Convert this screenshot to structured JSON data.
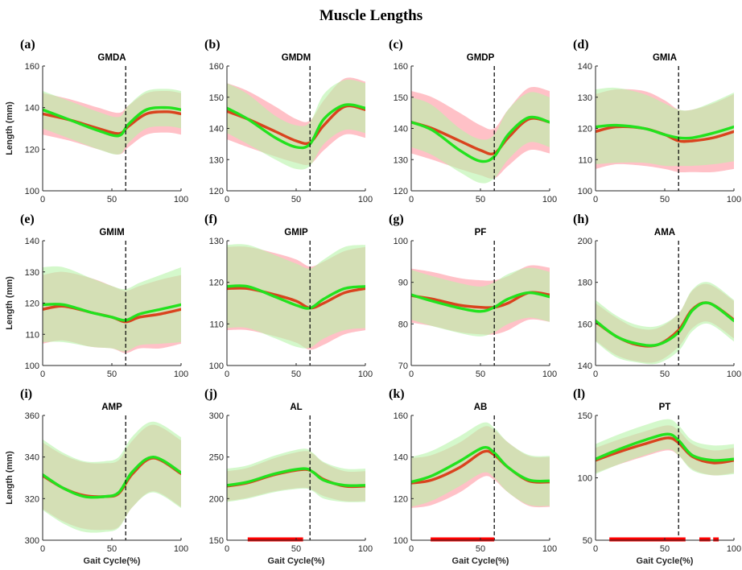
{
  "figure": {
    "title": "Muscle Lengths"
  },
  "colors": {
    "mean_a": "#d9431e",
    "mean_b": "#22e21e",
    "band_a": "#ffb6bd",
    "band_b": "#b8f3a8",
    "overlap": "#d2d6b0",
    "significance": "#ff0000"
  },
  "chart_data": [
    {
      "tag": "(a)",
      "title": "GMDA",
      "type": "line",
      "xlim": [
        0,
        100
      ],
      "ylim": [
        100,
        160
      ],
      "yticks": [
        100,
        120,
        140,
        160
      ],
      "xticks": [
        0,
        50,
        100
      ],
      "ylabel": "Length (mm)",
      "xlabel": "",
      "vline_x": 60,
      "series": [
        {
          "x": [
            0,
            20,
            40,
            55,
            62,
            75,
            90,
            100
          ],
          "y": [
            137,
            134,
            130,
            127.5,
            131,
            137,
            138,
            137
          ],
          "band": [
            10,
            10,
            10,
            10,
            10,
            10,
            10,
            10
          ]
        },
        {
          "x": [
            0,
            20,
            40,
            55,
            62,
            75,
            90,
            100
          ],
          "y": [
            139,
            134,
            129,
            126.5,
            132,
            139,
            140,
            139
          ],
          "band": [
            9,
            9,
            9,
            9,
            9,
            9,
            9,
            9
          ]
        }
      ],
      "significance": []
    },
    {
      "tag": "(b)",
      "title": "GMDM",
      "type": "line",
      "xlim": [
        0,
        100
      ],
      "ylim": [
        120,
        160
      ],
      "yticks": [
        120,
        130,
        140,
        150,
        160
      ],
      "xticks": [
        0,
        50,
        100
      ],
      "ylabel": "",
      "xlabel": "",
      "vline_x": 60,
      "series": [
        {
          "x": [
            0,
            15,
            35,
            50,
            60,
            70,
            85,
            100
          ],
          "y": [
            145.5,
            143,
            139,
            136,
            135.5,
            141,
            147,
            146
          ],
          "band": [
            9,
            9,
            8,
            7,
            7,
            8,
            9,
            9
          ]
        },
        {
          "x": [
            0,
            15,
            35,
            50,
            60,
            70,
            85,
            100
          ],
          "y": [
            146.5,
            143,
            137,
            134,
            135,
            143,
            147.5,
            146.5
          ],
          "band": [
            8,
            8,
            7,
            7,
            7,
            8,
            8,
            8
          ]
        }
      ],
      "significance": []
    },
    {
      "tag": "(c)",
      "title": "GMDP",
      "type": "line",
      "xlim": [
        0,
        100
      ],
      "ylim": [
        120,
        160
      ],
      "yticks": [
        120,
        130,
        140,
        150,
        160
      ],
      "xticks": [
        0,
        50,
        100
      ],
      "ylabel": "",
      "xlabel": "",
      "vline_x": 60,
      "series": [
        {
          "x": [
            0,
            15,
            35,
            50,
            60,
            70,
            85,
            100
          ],
          "y": [
            142,
            140,
            136,
            133,
            132,
            137,
            143,
            142
          ],
          "band": [
            10,
            10,
            9,
            8,
            8,
            9,
            10,
            10
          ]
        },
        {
          "x": [
            0,
            15,
            35,
            50,
            60,
            70,
            85,
            100
          ],
          "y": [
            142,
            139.5,
            133,
            129.5,
            131,
            138,
            143.5,
            142
          ],
          "band": [
            8,
            8,
            7,
            7,
            7,
            8,
            8,
            8
          ]
        }
      ],
      "significance": []
    },
    {
      "tag": "(d)",
      "title": "GMIA",
      "type": "line",
      "xlim": [
        0,
        100
      ],
      "ylim": [
        100,
        140
      ],
      "yticks": [
        100,
        110,
        120,
        130,
        140
      ],
      "xticks": [
        0,
        50,
        100
      ],
      "ylabel": "",
      "xlabel": "",
      "vline_x": 60,
      "series": [
        {
          "x": [
            0,
            15,
            35,
            50,
            60,
            70,
            85,
            100
          ],
          "y": [
            119,
            120.5,
            120,
            118,
            116,
            116,
            117,
            119
          ],
          "band": [
            12,
            12,
            12,
            11,
            10,
            10,
            11,
            12
          ]
        },
        {
          "x": [
            0,
            15,
            35,
            50,
            60,
            70,
            85,
            100
          ],
          "y": [
            120.5,
            121,
            120,
            118,
            117,
            117,
            118.5,
            120.5
          ],
          "band": [
            12,
            12,
            11,
            10,
            9,
            9,
            10,
            11
          ]
        }
      ],
      "significance": []
    },
    {
      "tag": "(e)",
      "title": "GMIM",
      "type": "line",
      "xlim": [
        0,
        100
      ],
      "ylim": [
        100,
        140
      ],
      "yticks": [
        100,
        110,
        120,
        130,
        140
      ],
      "xticks": [
        0,
        50,
        100
      ],
      "ylabel": "Length (mm)",
      "xlabel": "",
      "vline_x": 60,
      "series": [
        {
          "x": [
            0,
            15,
            35,
            50,
            60,
            70,
            85,
            100
          ],
          "y": [
            118,
            119,
            117,
            115.5,
            114,
            115.5,
            116.5,
            118
          ],
          "band": [
            11,
            11,
            11,
            10,
            10,
            10,
            11,
            11
          ]
        },
        {
          "x": [
            0,
            15,
            35,
            50,
            60,
            70,
            85,
            100
          ],
          "y": [
            119.5,
            119.5,
            117,
            115.5,
            114.5,
            116.5,
            118,
            119.5
          ],
          "band": [
            12,
            12,
            11,
            10,
            10,
            10,
            11,
            12
          ]
        }
      ],
      "significance": []
    },
    {
      "tag": "(f)",
      "title": "GMIP",
      "type": "line",
      "xlim": [
        0,
        100
      ],
      "ylim": [
        100,
        130
      ],
      "yticks": [
        100,
        110,
        120,
        130
      ],
      "xticks": [
        0,
        50,
        100
      ],
      "ylabel": "",
      "xlabel": "",
      "vline_x": 60,
      "series": [
        {
          "x": [
            0,
            15,
            35,
            50,
            60,
            70,
            85,
            100
          ],
          "y": [
            118.5,
            118.5,
            117,
            115.5,
            113.8,
            115,
            117.5,
            118.5
          ],
          "band": [
            10,
            10,
            10,
            10,
            10,
            10,
            10,
            10
          ]
        },
        {
          "x": [
            0,
            15,
            35,
            50,
            60,
            70,
            85,
            100
          ],
          "y": [
            119,
            119,
            116.5,
            114.5,
            113.8,
            116,
            118.5,
            119
          ],
          "band": [
            10,
            10,
            10,
            10,
            9.5,
            9.5,
            10,
            10
          ]
        }
      ],
      "significance": []
    },
    {
      "tag": "(g)",
      "title": "PF",
      "type": "line",
      "xlim": [
        0,
        100
      ],
      "ylim": [
        70,
        100
      ],
      "yticks": [
        70,
        80,
        90,
        100
      ],
      "xticks": [
        0,
        50,
        100
      ],
      "ylabel": "",
      "xlabel": "",
      "vline_x": 60,
      "series": [
        {
          "x": [
            0,
            15,
            35,
            50,
            60,
            70,
            85,
            100
          ],
          "y": [
            86.8,
            86,
            84.5,
            84,
            84,
            85,
            87.5,
            87
          ],
          "band": [
            6.5,
            6.5,
            6.5,
            6.5,
            6.5,
            6.5,
            6.5,
            6.5
          ]
        },
        {
          "x": [
            0,
            15,
            35,
            50,
            60,
            70,
            85,
            100
          ],
          "y": [
            87,
            85.5,
            83.8,
            83,
            84,
            86,
            87.5,
            86.5
          ],
          "band": [
            6,
            6,
            6,
            6,
            6,
            6,
            6,
            6
          ]
        }
      ],
      "significance": []
    },
    {
      "tag": "(h)",
      "title": "AMA",
      "type": "line",
      "xlim": [
        0,
        100
      ],
      "ylim": [
        140,
        200
      ],
      "yticks": [
        140,
        160,
        180,
        200
      ],
      "xticks": [
        0,
        50,
        100
      ],
      "ylabel": "",
      "xlabel": "",
      "vline_x": 60,
      "series": [
        {
          "x": [
            0,
            15,
            30,
            45,
            60,
            70,
            82,
            100
          ],
          "y": [
            161,
            154,
            150,
            150,
            157,
            167,
            170,
            162
          ],
          "band": [
            9,
            9,
            8,
            8,
            8,
            9,
            9,
            9
          ]
        },
        {
          "x": [
            0,
            15,
            30,
            45,
            60,
            70,
            82,
            100
          ],
          "y": [
            161.5,
            154,
            150.5,
            150,
            156,
            166.5,
            170,
            161.5
          ],
          "band": [
            10,
            10,
            9,
            9,
            9,
            10,
            10,
            10
          ]
        }
      ],
      "significance": []
    },
    {
      "tag": "(i)",
      "title": "AMP",
      "type": "line",
      "xlim": [
        0,
        100
      ],
      "ylim": [
        300,
        360
      ],
      "yticks": [
        300,
        320,
        340,
        360
      ],
      "xticks": [
        0,
        50,
        100
      ],
      "ylabel": "Length (mm)",
      "xlabel": "Gait Cycle(%)",
      "vline_x": 60,
      "series": [
        {
          "x": [
            0,
            15,
            30,
            45,
            55,
            65,
            80,
            100
          ],
          "y": [
            331,
            325,
            321.5,
            321,
            322.5,
            332,
            339.5,
            332
          ],
          "band": [
            16,
            16,
            16,
            16,
            16,
            16,
            16,
            16
          ]
        },
        {
          "x": [
            0,
            15,
            30,
            45,
            55,
            65,
            80,
            100
          ],
          "y": [
            331.5,
            325,
            321,
            321,
            323,
            333,
            340,
            332.5
          ],
          "band": [
            17,
            17,
            17,
            17,
            17,
            17,
            17,
            17
          ]
        }
      ],
      "significance": []
    },
    {
      "tag": "(j)",
      "title": "AL",
      "type": "line",
      "xlim": [
        0,
        100
      ],
      "ylim": [
        150,
        300
      ],
      "yticks": [
        150,
        200,
        250,
        300
      ],
      "xticks": [
        0,
        50,
        100
      ],
      "ylabel": "",
      "xlabel": "Gait Cycle(%)",
      "vline_x": 60,
      "series": [
        {
          "x": [
            0,
            15,
            35,
            55,
            62,
            70,
            85,
            100
          ],
          "y": [
            215,
            219,
            229,
            235,
            232,
            223,
            215,
            215
          ],
          "band": [
            18,
            18,
            20,
            22,
            22,
            20,
            18,
            18
          ]
        },
        {
          "x": [
            0,
            15,
            35,
            55,
            62,
            70,
            85,
            100
          ],
          "y": [
            216,
            220,
            230,
            236,
            232,
            222,
            216,
            216
          ],
          "band": [
            20,
            20,
            22,
            24,
            23,
            22,
            20,
            20
          ]
        }
      ],
      "significance": [
        [
          15,
          55
        ]
      ]
    },
    {
      "tag": "(k)",
      "title": "AB",
      "type": "line",
      "xlim": [
        0,
        100
      ],
      "ylim": [
        100,
        160
      ],
      "yticks": [
        100,
        120,
        140,
        160
      ],
      "xticks": [
        0,
        50,
        100
      ],
      "ylabel": "",
      "xlabel": "Gait Cycle(%)",
      "vline_x": 60,
      "series": [
        {
          "x": [
            0,
            15,
            35,
            52,
            60,
            70,
            85,
            100
          ],
          "y": [
            127.5,
            129,
            135,
            142.5,
            141,
            135,
            128.5,
            128
          ],
          "band": [
            12,
            12,
            12,
            12,
            12,
            12,
            12,
            12
          ]
        },
        {
          "x": [
            0,
            15,
            35,
            52,
            60,
            70,
            85,
            100
          ],
          "y": [
            128,
            131,
            138,
            144.5,
            142,
            135,
            129,
            128.5
          ],
          "band": [
            12,
            12,
            12,
            12,
            12,
            12,
            12,
            12
          ]
        }
      ],
      "significance": [
        [
          14,
          60
        ]
      ]
    },
    {
      "tag": "(l)",
      "title": "PT",
      "type": "line",
      "xlim": [
        0,
        100
      ],
      "ylim": [
        50,
        150
      ],
      "yticks": [
        50,
        100,
        150
      ],
      "xticks": [
        0,
        50,
        100
      ],
      "ylabel": "",
      "xlabel": "Gait Cycle(%)",
      "vline_x": 60,
      "series": [
        {
          "x": [
            0,
            15,
            35,
            52,
            60,
            70,
            85,
            100
          ],
          "y": [
            114,
            120,
            127,
            132,
            128,
            117,
            112,
            114
          ],
          "band": [
            10,
            10,
            10,
            10,
            10,
            10,
            10,
            10
          ]
        },
        {
          "x": [
            0,
            15,
            35,
            52,
            60,
            70,
            85,
            100
          ],
          "y": [
            115,
            122,
            130,
            135,
            130,
            118,
            114,
            115
          ],
          "band": [
            12,
            12,
            12,
            12,
            12,
            12,
            12,
            12
          ]
        }
      ],
      "significance": [
        [
          10,
          65
        ],
        [
          75,
          83
        ],
        [
          85,
          89
        ]
      ]
    }
  ]
}
